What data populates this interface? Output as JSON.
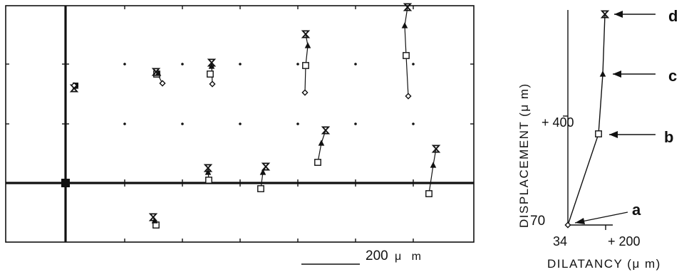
{
  "scale_bar": {
    "value": "200",
    "unit": "μ m"
  },
  "profile": {
    "y_axis_title": "DISPLACEMENT (μ m)",
    "y_tick_top": "+ 400",
    "y_tick_bottom": "70",
    "x_tick_left": "34",
    "x_tick_right": "+ 200",
    "x_axis_title": "DILATANCY (μ m)",
    "stages": [
      "a",
      "b",
      "c",
      "d"
    ]
  },
  "markers": {
    "a": "diamond",
    "b": "square",
    "c": "triangle",
    "d": "hourglass"
  },
  "colors": {
    "ink": "#111111",
    "background": "#ffffff"
  }
}
